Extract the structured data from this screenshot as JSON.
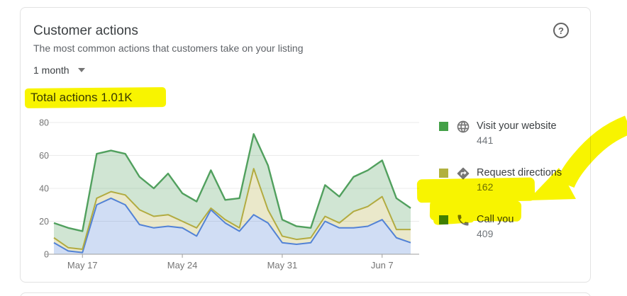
{
  "card": {
    "title": "Customer actions",
    "subtitle": "The most common actions that customers take on your listing",
    "period_selector": {
      "value": "1 month"
    },
    "total_label": "Total actions 1.01K",
    "help_glyph": "?"
  },
  "legend": {
    "items": [
      {
        "label": "Visit your website",
        "count": "441",
        "chip_color": "#43a047",
        "icon": "globe-icon"
      },
      {
        "label": "Request directions",
        "count": "162",
        "chip_color": "#b1b13f",
        "icon": "directions-icon"
      },
      {
        "label": "Call you",
        "count": "409",
        "chip_color": "#4285f4",
        "icon": "phone-icon"
      }
    ]
  },
  "annotations": {
    "marker_color": "#f8f400",
    "highlighted_text": [
      "Total actions 1.01K",
      "Call you 409"
    ],
    "arrow_target": "Call you"
  },
  "chart_data": {
    "type": "area",
    "stacked": true,
    "n_points": 26,
    "x_tick_labels": [
      "May 17",
      "May 24",
      "May 31",
      "Jun 7"
    ],
    "x_tick_indices": [
      2,
      9,
      16,
      23
    ],
    "ylim": [
      0,
      80
    ],
    "y_ticks": [
      0,
      20,
      40,
      60,
      80
    ],
    "grid": true,
    "legend_position": "right",
    "series": [
      {
        "name": "Call you",
        "total": 409,
        "line_color": "#5282d6",
        "fill_color": "rgba(82,130,214,0.27)",
        "values": [
          7,
          2,
          1,
          30,
          34,
          30,
          18,
          16,
          17,
          16,
          11,
          27,
          19,
          14,
          24,
          19,
          7,
          6,
          7,
          20,
          16,
          16,
          17,
          21,
          10,
          7
        ]
      },
      {
        "name": "Request directions",
        "total": 162,
        "line_color": "#b2ab41",
        "fill_color": "rgba(178,171,65,0.28)",
        "values": [
          3,
          2,
          2,
          4,
          4,
          6,
          9,
          7,
          7,
          4,
          5,
          1,
          2,
          2,
          28,
          8,
          4,
          3,
          3,
          3,
          3,
          10,
          12,
          14,
          5,
          8
        ]
      },
      {
        "name": "Visit your website",
        "total": 441,
        "line_color": "#51a05e",
        "fill_color": "rgba(81,160,94,0.27)",
        "values": [
          9,
          12,
          11,
          27,
          25,
          25,
          20,
          17,
          25,
          17,
          16,
          23,
          12,
          18,
          21,
          27,
          10,
          8,
          6,
          19,
          16,
          21,
          22,
          22,
          19,
          13
        ]
      }
    ]
  }
}
